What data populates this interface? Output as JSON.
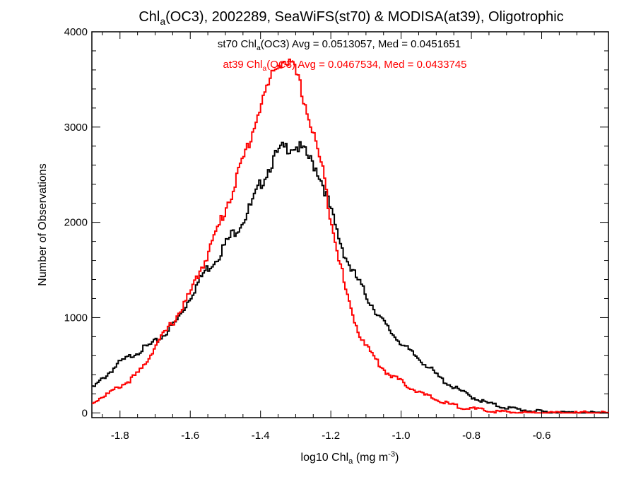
{
  "chart_data": {
    "type": "line",
    "title_main": "Chl",
    "title_sub": "a",
    "title_rest": "(OC3), 2002289, SeaWiFS(st70) & MODISA(at39), Oligotrophic",
    "xlabel_main": "log10 Chl",
    "xlabel_sub": "a",
    "xlabel_rest": " (mg m",
    "xlabel_sup": "-3",
    "xlabel_end": ")",
    "ylabel": "Number of Observations",
    "xlim": [
      -1.88,
      -0.41
    ],
    "ylim": [
      -50,
      4000
    ],
    "xticks": [
      -1.8,
      -1.6,
      -1.4,
      -1.2,
      -1.0,
      -0.8,
      -0.6
    ],
    "xtick_labels": [
      "-1.8",
      "-1.6",
      "-1.4",
      "-1.2",
      "-1.0",
      "-0.8",
      "-0.6"
    ],
    "yticks": [
      0,
      1000,
      2000,
      3000,
      4000
    ],
    "ytick_labels": [
      "0",
      "1000",
      "2000",
      "3000",
      "4000"
    ],
    "series": [
      {
        "name": "st70",
        "color": "#000000",
        "legend_pre": "st70 Chl",
        "legend_sub": "a",
        "legend_post": "(OC3) Avg = 0.0513057, Med = 0.0451651",
        "points": [
          [
            -1.88,
            250
          ],
          [
            -1.86,
            320
          ],
          [
            -1.84,
            390
          ],
          [
            -1.82,
            460
          ],
          [
            -1.8,
            530
          ],
          [
            -1.78,
            570
          ],
          [
            -1.76,
            620
          ],
          [
            -1.74,
            660
          ],
          [
            -1.72,
            700
          ],
          [
            -1.7,
            740
          ],
          [
            -1.68,
            800
          ],
          [
            -1.66,
            880
          ],
          [
            -1.64,
            960
          ],
          [
            -1.62,
            1080
          ],
          [
            -1.6,
            1220
          ],
          [
            -1.58,
            1350
          ],
          [
            -1.56,
            1480
          ],
          [
            -1.54,
            1560
          ],
          [
            -1.52,
            1650
          ],
          [
            -1.5,
            1770
          ],
          [
            -1.48,
            1880
          ],
          [
            -1.46,
            1970
          ],
          [
            -1.44,
            2080
          ],
          [
            -1.42,
            2230
          ],
          [
            -1.4,
            2400
          ],
          [
            -1.38,
            2540
          ],
          [
            -1.36,
            2680
          ],
          [
            -1.34,
            2770
          ],
          [
            -1.32,
            2790
          ],
          [
            -1.3,
            2800
          ],
          [
            -1.28,
            2760
          ],
          [
            -1.26,
            2660
          ],
          [
            -1.24,
            2560
          ],
          [
            -1.22,
            2380
          ],
          [
            -1.2,
            2120
          ],
          [
            -1.18,
            1870
          ],
          [
            -1.16,
            1660
          ],
          [
            -1.14,
            1490
          ],
          [
            -1.12,
            1380
          ],
          [
            -1.1,
            1230
          ],
          [
            -1.08,
            1120
          ],
          [
            -1.06,
            1000
          ],
          [
            -1.04,
            900
          ],
          [
            -1.02,
            810
          ],
          [
            -1.0,
            740
          ],
          [
            -0.98,
            660
          ],
          [
            -0.96,
            600
          ],
          [
            -0.94,
            540
          ],
          [
            -0.92,
            480
          ],
          [
            -0.9,
            400
          ],
          [
            -0.88,
            340
          ],
          [
            -0.86,
            290
          ],
          [
            -0.84,
            250
          ],
          [
            -0.82,
            210
          ],
          [
            -0.8,
            170
          ],
          [
            -0.78,
            140
          ],
          [
            -0.76,
            110
          ],
          [
            -0.74,
            90
          ],
          [
            -0.72,
            70
          ],
          [
            -0.7,
            55
          ],
          [
            -0.68,
            45
          ],
          [
            -0.66,
            35
          ],
          [
            -0.64,
            25
          ],
          [
            -0.62,
            18
          ],
          [
            -0.6,
            12
          ],
          [
            -0.58,
            8
          ],
          [
            -0.56,
            5
          ],
          [
            -0.54,
            3
          ],
          [
            -0.52,
            2
          ],
          [
            -0.5,
            1
          ],
          [
            -0.48,
            1
          ],
          [
            -0.46,
            0
          ],
          [
            -0.44,
            0
          ],
          [
            -0.42,
            0
          ]
        ]
      },
      {
        "name": "at39",
        "color": "#ff0000",
        "legend_pre": "at39 Chl",
        "legend_sub": "a",
        "legend_post": "(OC3) Avg = 0.0467534, Med = 0.0433745",
        "points": [
          [
            -1.88,
            100
          ],
          [
            -1.86,
            150
          ],
          [
            -1.84,
            190
          ],
          [
            -1.82,
            230
          ],
          [
            -1.8,
            280
          ],
          [
            -1.78,
            320
          ],
          [
            -1.76,
            380
          ],
          [
            -1.74,
            450
          ],
          [
            -1.72,
            570
          ],
          [
            -1.7,
            700
          ],
          [
            -1.68,
            800
          ],
          [
            -1.66,
            900
          ],
          [
            -1.64,
            1000
          ],
          [
            -1.62,
            1130
          ],
          [
            -1.6,
            1250
          ],
          [
            -1.58,
            1430
          ],
          [
            -1.56,
            1590
          ],
          [
            -1.54,
            1760
          ],
          [
            -1.52,
            1950
          ],
          [
            -1.5,
            2140
          ],
          [
            -1.48,
            2330
          ],
          [
            -1.46,
            2550
          ],
          [
            -1.44,
            2760
          ],
          [
            -1.42,
            2980
          ],
          [
            -1.4,
            3230
          ],
          [
            -1.38,
            3420
          ],
          [
            -1.36,
            3600
          ],
          [
            -1.34,
            3700
          ],
          [
            -1.32,
            3680
          ],
          [
            -1.3,
            3580
          ],
          [
            -1.28,
            3340
          ],
          [
            -1.26,
            3060
          ],
          [
            -1.24,
            2800
          ],
          [
            -1.22,
            2490
          ],
          [
            -1.2,
            2050
          ],
          [
            -1.18,
            1700
          ],
          [
            -1.16,
            1320
          ],
          [
            -1.14,
            1050
          ],
          [
            -1.12,
            840
          ],
          [
            -1.1,
            720
          ],
          [
            -1.08,
            600
          ],
          [
            -1.06,
            500
          ],
          [
            -1.04,
            420
          ],
          [
            -1.02,
            380
          ],
          [
            -1.0,
            330
          ],
          [
            -0.98,
            280
          ],
          [
            -0.96,
            240
          ],
          [
            -0.94,
            200
          ],
          [
            -0.92,
            170
          ],
          [
            -0.9,
            140
          ],
          [
            -0.88,
            110
          ],
          [
            -0.86,
            90
          ],
          [
            -0.84,
            70
          ],
          [
            -0.82,
            55
          ],
          [
            -0.8,
            45
          ],
          [
            -0.78,
            35
          ],
          [
            -0.76,
            25
          ],
          [
            -0.74,
            18
          ],
          [
            -0.72,
            12
          ],
          [
            -0.7,
            8
          ],
          [
            -0.68,
            5
          ],
          [
            -0.66,
            3
          ],
          [
            -0.64,
            2
          ],
          [
            -0.62,
            1
          ],
          [
            -0.6,
            1
          ],
          [
            -0.58,
            0
          ],
          [
            -0.56,
            0
          ],
          [
            -0.54,
            0
          ],
          [
            -0.52,
            0
          ],
          [
            -0.5,
            0
          ],
          [
            -0.48,
            0
          ],
          [
            -0.46,
            0
          ],
          [
            -0.44,
            0
          ],
          [
            -0.42,
            0
          ]
        ]
      }
    ]
  }
}
